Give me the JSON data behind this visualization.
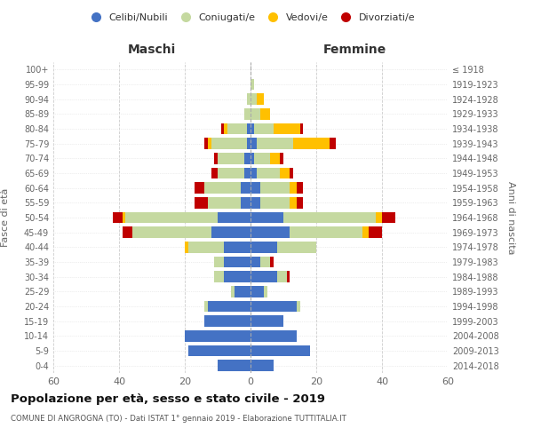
{
  "age_groups": [
    "0-4",
    "5-9",
    "10-14",
    "15-19",
    "20-24",
    "25-29",
    "30-34",
    "35-39",
    "40-44",
    "45-49",
    "50-54",
    "55-59",
    "60-64",
    "65-69",
    "70-74",
    "75-79",
    "80-84",
    "85-89",
    "90-94",
    "95-99",
    "100+"
  ],
  "birth_years": [
    "2014-2018",
    "2009-2013",
    "2004-2008",
    "1999-2003",
    "1994-1998",
    "1989-1993",
    "1984-1988",
    "1979-1983",
    "1974-1978",
    "1969-1973",
    "1964-1968",
    "1959-1963",
    "1954-1958",
    "1949-1953",
    "1944-1948",
    "1939-1943",
    "1934-1938",
    "1929-1933",
    "1924-1928",
    "1919-1923",
    "≤ 1918"
  ],
  "colors": {
    "celibi": "#4472c4",
    "coniugati": "#c5d9a0",
    "vedovi": "#ffc000",
    "divorziati": "#c00000"
  },
  "males": {
    "celibi": [
      10,
      19,
      20,
      14,
      13,
      5,
      8,
      8,
      8,
      12,
      10,
      3,
      3,
      2,
      2,
      1,
      1,
      0,
      0,
      0,
      0
    ],
    "coniugati": [
      0,
      0,
      0,
      0,
      1,
      1,
      3,
      3,
      11,
      24,
      28,
      10,
      11,
      8,
      8,
      11,
      6,
      2,
      1,
      0,
      0
    ],
    "vedovi": [
      0,
      0,
      0,
      0,
      0,
      0,
      0,
      0,
      1,
      0,
      1,
      0,
      0,
      0,
      0,
      1,
      1,
      0,
      0,
      0,
      0
    ],
    "divorziati": [
      0,
      0,
      0,
      0,
      0,
      0,
      0,
      0,
      0,
      3,
      3,
      4,
      3,
      2,
      1,
      1,
      1,
      0,
      0,
      0,
      0
    ]
  },
  "females": {
    "celibi": [
      7,
      18,
      14,
      10,
      14,
      4,
      8,
      3,
      8,
      12,
      10,
      3,
      3,
      2,
      1,
      2,
      1,
      0,
      0,
      0,
      0
    ],
    "coniugati": [
      0,
      0,
      0,
      0,
      1,
      1,
      3,
      3,
      12,
      22,
      28,
      9,
      9,
      7,
      5,
      11,
      6,
      3,
      2,
      1,
      0
    ],
    "vedovi": [
      0,
      0,
      0,
      0,
      0,
      0,
      0,
      0,
      0,
      2,
      2,
      2,
      2,
      3,
      3,
      11,
      8,
      3,
      2,
      0,
      0
    ],
    "divorziati": [
      0,
      0,
      0,
      0,
      0,
      0,
      1,
      1,
      0,
      4,
      4,
      2,
      2,
      1,
      1,
      2,
      1,
      0,
      0,
      0,
      0
    ]
  },
  "title": "Popolazione per età, sesso e stato civile - 2019",
  "subtitle": "COMUNE DI ANGROGNA (TO) - Dati ISTAT 1° gennaio 2019 - Elaborazione TUTTITALIA.IT",
  "xlabel_left": "Maschi",
  "xlabel_right": "Femmine",
  "ylabel_left": "Fasce di età",
  "ylabel_right": "Anni di nascita",
  "xlim": 60,
  "legend_labels": [
    "Celibi/Nubili",
    "Coniugati/e",
    "Vedovi/e",
    "Divorziati/e"
  ]
}
